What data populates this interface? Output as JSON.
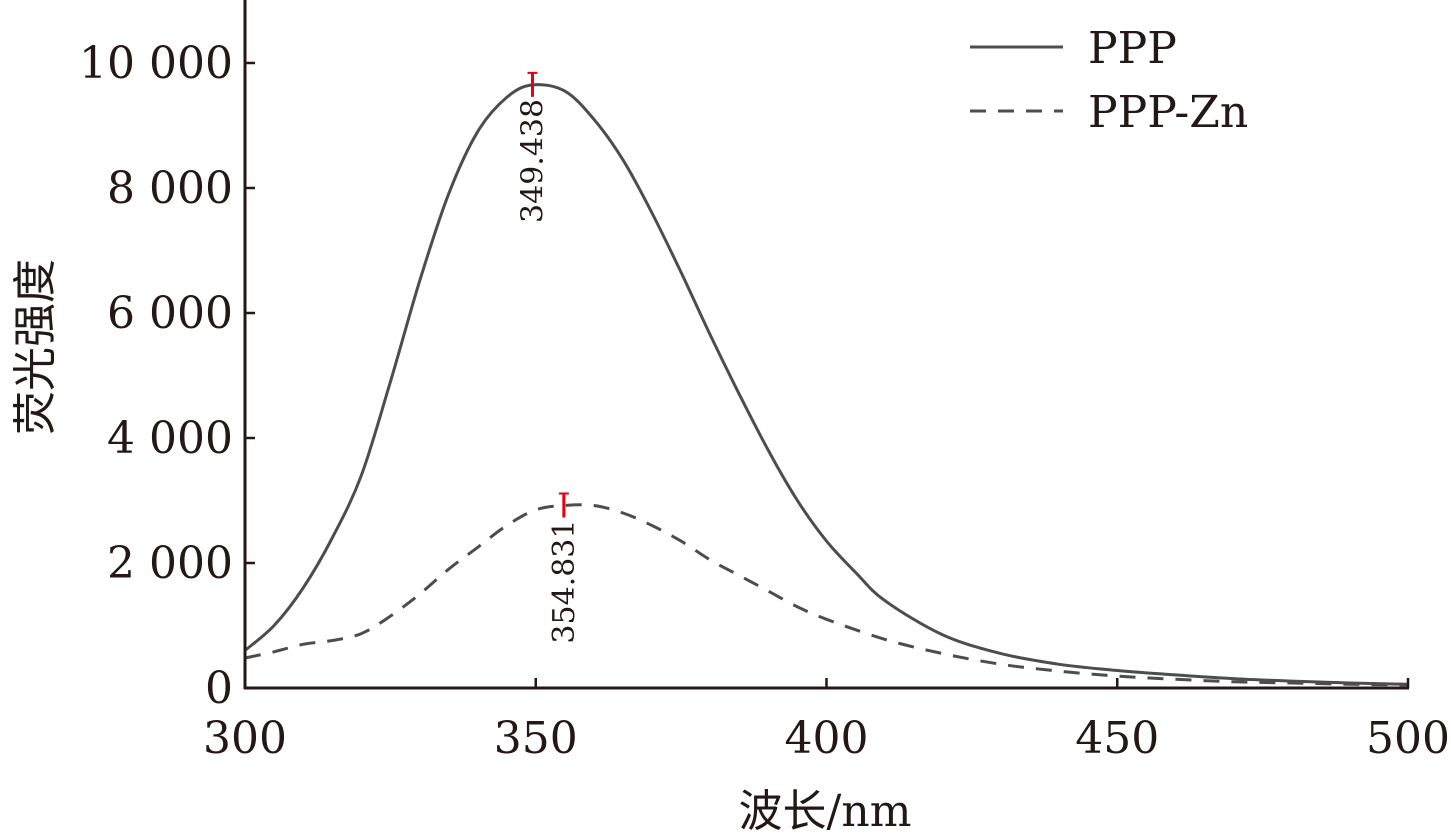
{
  "chart_data": {
    "type": "line",
    "xlabel": "波长/nm",
    "ylabel": "荧光强度",
    "xlim": [
      300,
      500
    ],
    "ylim": [
      0,
      11000
    ],
    "x_ticks": [
      {
        "value": 300,
        "label": "300"
      },
      {
        "value": 350,
        "label": "350"
      },
      {
        "value": 400,
        "label": "400"
      },
      {
        "value": 450,
        "label": "450"
      },
      {
        "value": 500,
        "label": "500"
      }
    ],
    "y_ticks": [
      {
        "value": 0,
        "label": "0"
      },
      {
        "value": 2000,
        "label": "2 000"
      },
      {
        "value": 4000,
        "label": "4 000"
      },
      {
        "value": 6000,
        "label": "6 000"
      },
      {
        "value": 8000,
        "label": "8 000"
      },
      {
        "value": 10000,
        "label": "10 000"
      }
    ],
    "legend_position": "top-right",
    "grid": false,
    "series": [
      {
        "name": "PPP",
        "style": "solid",
        "color": "#4d4d4d",
        "x": [
          300,
          305,
          310,
          315,
          320,
          325,
          330,
          335,
          340,
          345,
          349.438,
          355,
          360,
          365,
          370,
          375,
          380,
          385,
          390,
          395,
          400,
          405,
          410,
          420,
          430,
          440,
          450,
          460,
          470,
          480,
          490,
          500
        ],
        "y": [
          600,
          1000,
          1600,
          2400,
          3400,
          4900,
          6500,
          7900,
          8900,
          9450,
          9650,
          9550,
          9100,
          8450,
          7600,
          6650,
          5650,
          4700,
          3800,
          3000,
          2350,
          1850,
          1400,
          850,
          550,
          380,
          280,
          210,
          150,
          110,
          80,
          60
        ]
      },
      {
        "name": "PPP-Zn",
        "style": "dashed",
        "color": "#4d4d4d",
        "x": [
          300,
          305,
          310,
          315,
          320,
          325,
          330,
          335,
          340,
          345,
          350,
          354.831,
          360,
          365,
          370,
          375,
          380,
          385,
          390,
          395,
          400,
          410,
          420,
          430,
          440,
          450,
          460,
          470,
          480,
          490,
          500
        ],
        "y": [
          480,
          580,
          700,
          760,
          870,
          1150,
          1500,
          1900,
          2250,
          2600,
          2850,
          2920,
          2920,
          2800,
          2600,
          2350,
          2050,
          1800,
          1550,
          1300,
          1100,
          780,
          550,
          380,
          270,
          190,
          140,
          100,
          80,
          60,
          50
        ]
      }
    ],
    "annotations": [
      {
        "text": "349.438",
        "x": 349.438,
        "y": 9650,
        "series": "PPP"
      },
      {
        "text": "354.831",
        "x": 354.831,
        "y": 2920,
        "series": "PPP-Zn"
      }
    ],
    "annotation_color": "#e60012"
  }
}
